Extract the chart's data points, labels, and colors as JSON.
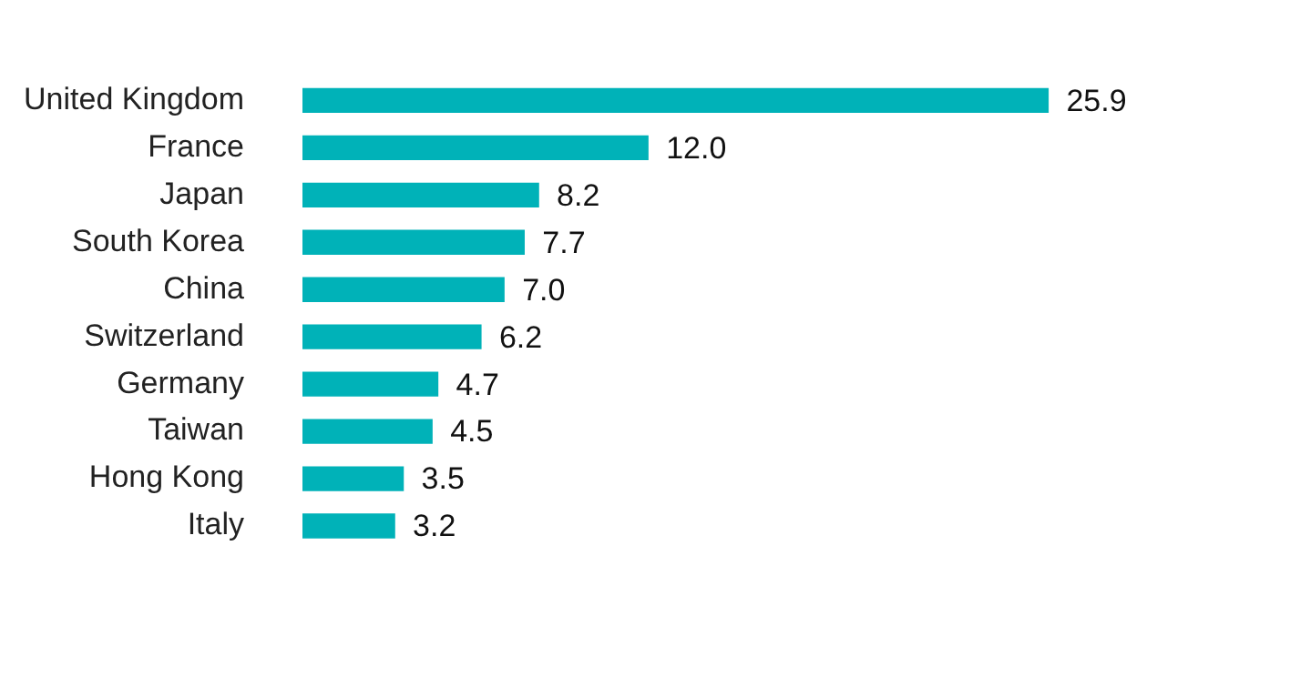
{
  "chart_data": {
    "type": "bar",
    "orientation": "horizontal",
    "categories": [
      "United Kingdom",
      "France",
      "Japan",
      "South Korea",
      "China",
      "Switzerland",
      "Germany",
      "Taiwan",
      "Hong Kong",
      "Italy"
    ],
    "values": [
      25.9,
      12.0,
      8.2,
      7.7,
      7.0,
      6.2,
      4.7,
      4.5,
      3.5,
      3.2
    ],
    "value_labels": [
      "25.9",
      "12.0",
      "8.2",
      "7.7",
      "7.0",
      "6.2",
      "4.7",
      "4.5",
      "3.5",
      "3.2"
    ],
    "color": "#00b2b8",
    "grid": false,
    "legend": false
  }
}
